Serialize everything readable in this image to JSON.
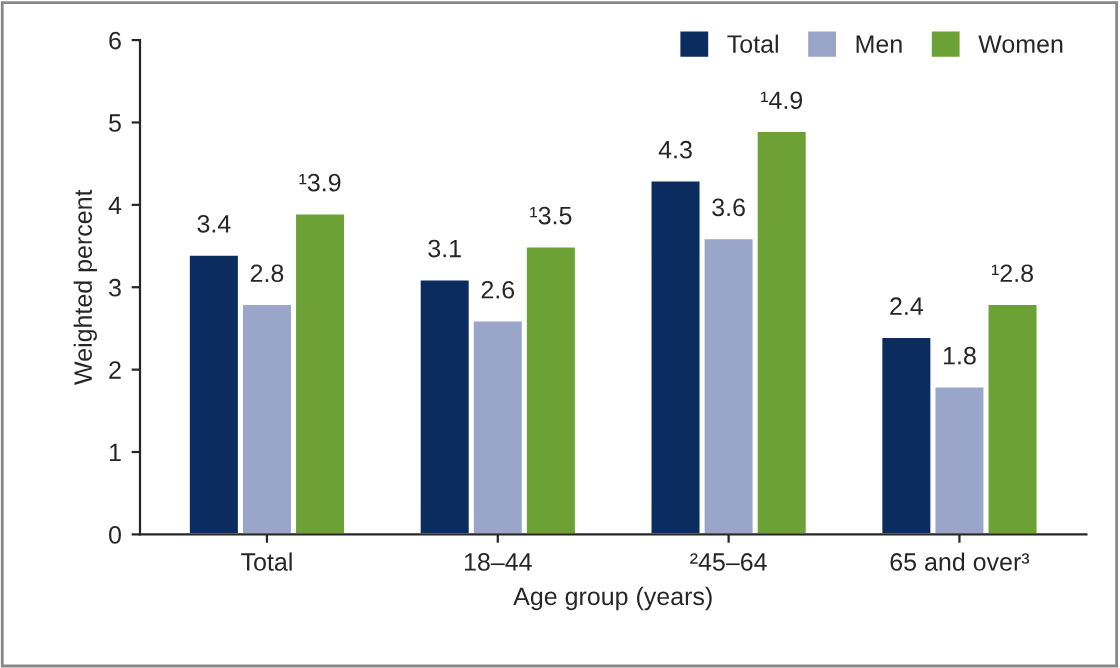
{
  "chart_data": {
    "type": "bar",
    "xlabel": "Age group (years)",
    "ylabel": "Weighted percent",
    "categories": [
      "Total",
      "18–44",
      "²45–64",
      "65 and over³"
    ],
    "series": [
      {
        "name": "Total",
        "color": "#0b2c5f",
        "values": [
          3.4,
          3.1,
          4.3,
          2.4
        ],
        "value_labels": [
          "3.4",
          "3.1",
          "4.3",
          "2.4"
        ]
      },
      {
        "name": "Men",
        "color": "#99a5c9",
        "values": [
          2.8,
          2.6,
          3.6,
          1.8
        ],
        "value_labels": [
          "2.8",
          "2.6",
          "3.6",
          "1.8"
        ]
      },
      {
        "name": "Women",
        "color": "#6ca235",
        "values": [
          3.9,
          3.5,
          4.9,
          2.8
        ],
        "value_labels": [
          "¹3.9",
          "¹3.5",
          "¹4.9",
          "¹2.8"
        ]
      }
    ],
    "ylim": [
      0,
      6
    ],
    "yticks": [
      0,
      1,
      2,
      3,
      4,
      5,
      6
    ],
    "grid": false,
    "legend": "top right"
  }
}
